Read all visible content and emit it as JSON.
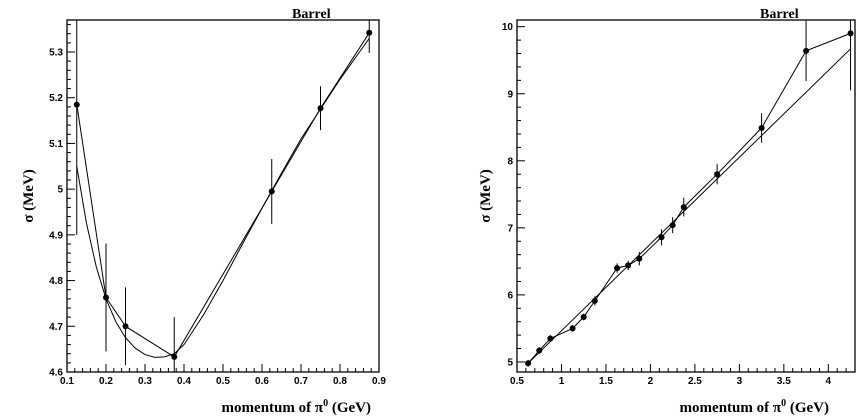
{
  "chart_data": [
    {
      "type": "scatter",
      "title": "Barrel",
      "xlabel_main": "momentum of π",
      "xlabel_sup": "0",
      "xlabel_unit": " (GeV)",
      "ylabel": "σ (MeV)",
      "xlim": [
        0.1,
        0.9
      ],
      "ylim": [
        4.6,
        5.37
      ],
      "xticks": [
        "0.1",
        "0.2",
        "0.3",
        "0.4",
        "0.5",
        "0.6",
        "0.7",
        "0.8",
        "0.9"
      ],
      "yticks": [
        "4.6",
        "4.7",
        "4.8",
        "4.9",
        "5",
        "5.1",
        "5.2",
        "5.3"
      ],
      "grid": false,
      "series": [
        {
          "kind": "points",
          "x": [
            0.125,
            0.2,
            0.25,
            0.375,
            0.625,
            0.75,
            0.875
          ],
          "y": [
            5.185,
            4.763,
            4.7,
            4.633,
            4.995,
            5.177,
            5.342
          ],
          "err": [
            0.285,
            0.118,
            0.085,
            0.087,
            0.071,
            0.048,
            0.044
          ]
        },
        {
          "kind": "polyline",
          "x": [
            0.125,
            0.2,
            0.25,
            0.375,
            0.625,
            0.75,
            0.875
          ],
          "y": [
            5.185,
            4.763,
            4.7,
            4.633,
            4.995,
            5.177,
            5.342
          ]
        },
        {
          "kind": "fit",
          "x": [
            0.125,
            0.15,
            0.175,
            0.2,
            0.225,
            0.25,
            0.275,
            0.3,
            0.325,
            0.35,
            0.375,
            0.4,
            0.45,
            0.5,
            0.55,
            0.6,
            0.65,
            0.7,
            0.75,
            0.8,
            0.85,
            0.875
          ],
          "y": [
            5.05,
            4.925,
            4.83,
            4.76,
            4.71,
            4.675,
            4.652,
            4.638,
            4.632,
            4.633,
            4.64,
            4.66,
            4.725,
            4.8,
            4.88,
            4.958,
            5.035,
            5.11,
            5.175,
            5.24,
            5.3,
            5.33
          ]
        }
      ]
    },
    {
      "type": "scatter",
      "title": "Barrel",
      "xlabel_main": "momentum of π",
      "xlabel_sup": "0",
      "xlabel_unit": " (GeV)",
      "ylabel": "σ (MeV)",
      "xlim": [
        0.5,
        4.3
      ],
      "ylim": [
        4.85,
        10.1
      ],
      "xticks": [
        "0.5",
        "1",
        "1.5",
        "2",
        "2.5",
        "3",
        "3.5",
        "4"
      ],
      "yticks": [
        "5",
        "6",
        "7",
        "8",
        "9",
        "10"
      ],
      "grid": false,
      "series": [
        {
          "kind": "points",
          "x": [
            0.625,
            0.75,
            0.875,
            1.125,
            1.25,
            1.375,
            1.625,
            1.75,
            1.875,
            2.125,
            2.25,
            2.375,
            2.75,
            3.25,
            3.75,
            4.25
          ],
          "y": [
            4.98,
            5.17,
            5.35,
            5.5,
            5.67,
            5.91,
            6.4,
            6.44,
            6.54,
            6.86,
            7.04,
            7.31,
            7.8,
            8.49,
            9.64,
            9.9
          ],
          "err": [
            0.05,
            0.05,
            0.05,
            0.05,
            0.05,
            0.07,
            0.07,
            0.07,
            0.1,
            0.12,
            0.12,
            0.14,
            0.15,
            0.22,
            0.45,
            0.85
          ]
        },
        {
          "kind": "polyline",
          "x": [
            0.625,
            0.75,
            0.875,
            1.125,
            1.25,
            1.375,
            1.625,
            1.75,
            1.875,
            2.125,
            2.25,
            2.375,
            2.75,
            3.25,
            3.75,
            4.25
          ],
          "y": [
            4.98,
            5.17,
            5.35,
            5.5,
            5.67,
            5.91,
            6.4,
            6.44,
            6.54,
            6.86,
            7.04,
            7.31,
            7.8,
            8.49,
            9.64,
            9.9
          ]
        },
        {
          "kind": "fit",
          "x": [
            0.625,
            4.25
          ],
          "y": [
            4.98,
            9.67
          ]
        }
      ]
    }
  ]
}
